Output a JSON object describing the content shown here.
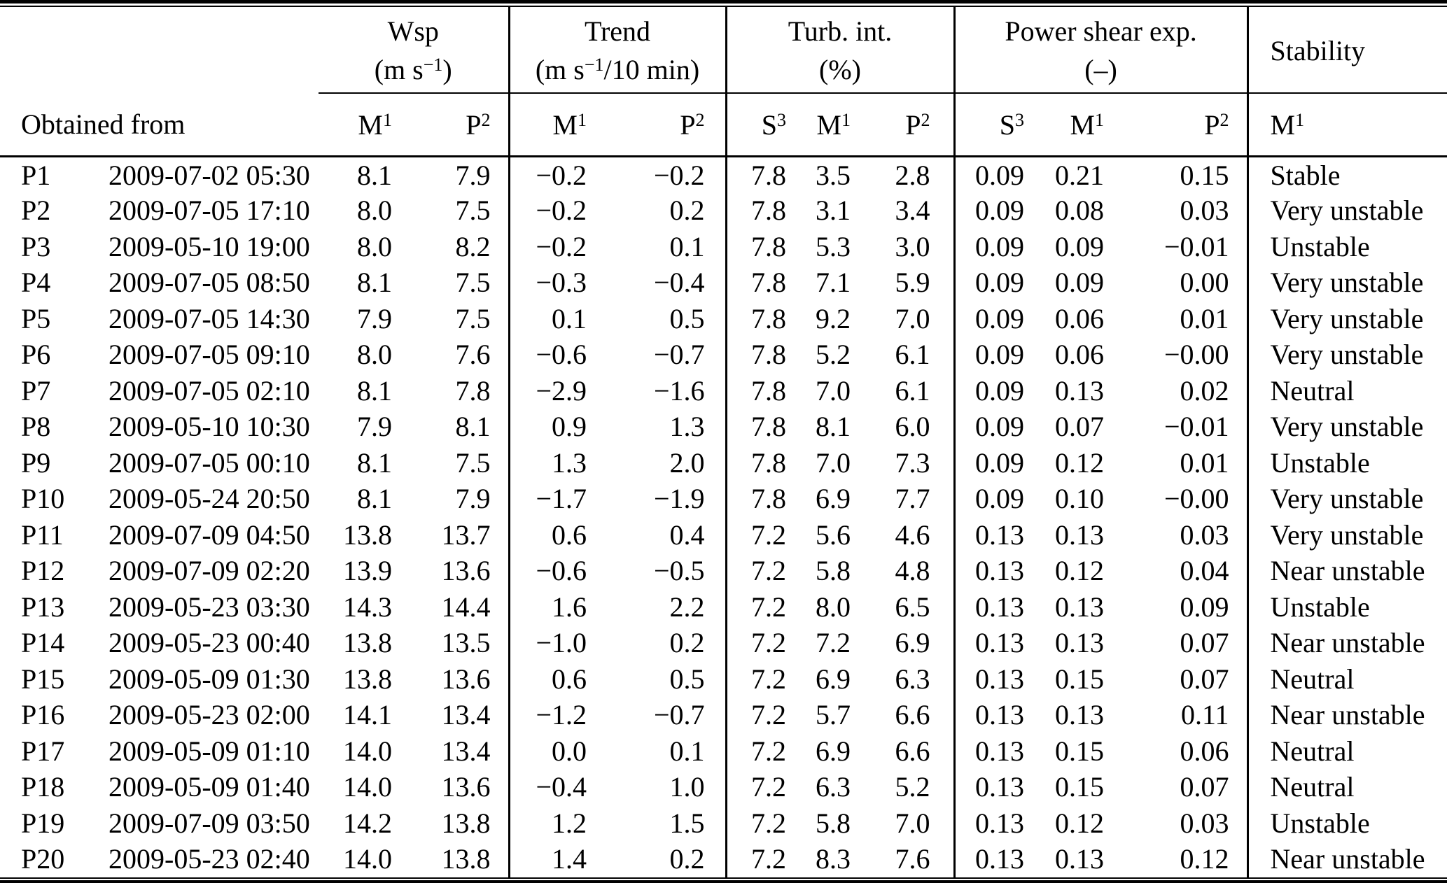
{
  "colors": {
    "text": "#000000",
    "background": "#ffffff",
    "rule": "#000000"
  },
  "table": {
    "obtained_from_label": "Obtained from",
    "groups": [
      {
        "name": "Wsp",
        "unit_pre": "(m s",
        "unit_sup": "−1",
        "unit_post": ")"
      },
      {
        "name": "Trend",
        "unit_pre": "(m s",
        "unit_sup": "−1",
        "unit_post": "/10 min)"
      },
      {
        "name": "Turb. int.",
        "unit_pre": "(%)",
        "unit_sup": "",
        "unit_post": ""
      },
      {
        "name": "Power shear exp.",
        "unit_pre": "(–)",
        "unit_sup": "",
        "unit_post": ""
      },
      {
        "name": "Stability",
        "unit_pre": "",
        "unit_sup": "",
        "unit_post": ""
      }
    ],
    "subheaders": [
      {
        "base": "M",
        "sup": "1"
      },
      {
        "base": "P",
        "sup": "2"
      },
      {
        "base": "M",
        "sup": "1"
      },
      {
        "base": "P",
        "sup": "2"
      },
      {
        "base": "S",
        "sup": "3"
      },
      {
        "base": "M",
        "sup": "1"
      },
      {
        "base": "P",
        "sup": "2"
      },
      {
        "base": "S",
        "sup": "3"
      },
      {
        "base": "M",
        "sup": "1"
      },
      {
        "base": "P",
        "sup": "2"
      },
      {
        "base": "M",
        "sup": "1"
      }
    ],
    "rows": [
      {
        "id": "P1",
        "datetime": "2009-07-02 05:30",
        "wsp_m": "8.1",
        "wsp_p": "7.9",
        "trend_m": "−0.2",
        "trend_p": "−0.2",
        "ti_s": "7.8",
        "ti_m": "3.5",
        "ti_p": "2.8",
        "shear_s": "0.09",
        "shear_m": "0.21",
        "shear_p": "0.15",
        "stability": "Stable"
      },
      {
        "id": "P2",
        "datetime": "2009-07-05 17:10",
        "wsp_m": "8.0",
        "wsp_p": "7.5",
        "trend_m": "−0.2",
        "trend_p": "0.2",
        "ti_s": "7.8",
        "ti_m": "3.1",
        "ti_p": "3.4",
        "shear_s": "0.09",
        "shear_m": "0.08",
        "shear_p": "0.03",
        "stability": "Very unstable"
      },
      {
        "id": "P3",
        "datetime": "2009-05-10 19:00",
        "wsp_m": "8.0",
        "wsp_p": "8.2",
        "trend_m": "−0.2",
        "trend_p": "0.1",
        "ti_s": "7.8",
        "ti_m": "5.3",
        "ti_p": "3.0",
        "shear_s": "0.09",
        "shear_m": "0.09",
        "shear_p": "−0.01",
        "stability": "Unstable"
      },
      {
        "id": "P4",
        "datetime": "2009-07-05 08:50",
        "wsp_m": "8.1",
        "wsp_p": "7.5",
        "trend_m": "−0.3",
        "trend_p": "−0.4",
        "ti_s": "7.8",
        "ti_m": "7.1",
        "ti_p": "5.9",
        "shear_s": "0.09",
        "shear_m": "0.09",
        "shear_p": "0.00",
        "stability": "Very unstable"
      },
      {
        "id": "P5",
        "datetime": "2009-07-05 14:30",
        "wsp_m": "7.9",
        "wsp_p": "7.5",
        "trend_m": "0.1",
        "trend_p": "0.5",
        "ti_s": "7.8",
        "ti_m": "9.2",
        "ti_p": "7.0",
        "shear_s": "0.09",
        "shear_m": "0.06",
        "shear_p": "0.01",
        "stability": "Very unstable"
      },
      {
        "id": "P6",
        "datetime": "2009-07-05 09:10",
        "wsp_m": "8.0",
        "wsp_p": "7.6",
        "trend_m": "−0.6",
        "trend_p": "−0.7",
        "ti_s": "7.8",
        "ti_m": "5.2",
        "ti_p": "6.1",
        "shear_s": "0.09",
        "shear_m": "0.06",
        "shear_p": "−0.00",
        "stability": "Very unstable"
      },
      {
        "id": "P7",
        "datetime": "2009-07-05 02:10",
        "wsp_m": "8.1",
        "wsp_p": "7.8",
        "trend_m": "−2.9",
        "trend_p": "−1.6",
        "ti_s": "7.8",
        "ti_m": "7.0",
        "ti_p": "6.1",
        "shear_s": "0.09",
        "shear_m": "0.13",
        "shear_p": "0.02",
        "stability": "Neutral"
      },
      {
        "id": "P8",
        "datetime": "2009-05-10 10:30",
        "wsp_m": "7.9",
        "wsp_p": "8.1",
        "trend_m": "0.9",
        "trend_p": "1.3",
        "ti_s": "7.8",
        "ti_m": "8.1",
        "ti_p": "6.0",
        "shear_s": "0.09",
        "shear_m": "0.07",
        "shear_p": "−0.01",
        "stability": "Very unstable"
      },
      {
        "id": "P9",
        "datetime": "2009-07-05 00:10",
        "wsp_m": "8.1",
        "wsp_p": "7.5",
        "trend_m": "1.3",
        "trend_p": "2.0",
        "ti_s": "7.8",
        "ti_m": "7.0",
        "ti_p": "7.3",
        "shear_s": "0.09",
        "shear_m": "0.12",
        "shear_p": "0.01",
        "stability": "Unstable"
      },
      {
        "id": "P10",
        "datetime": "2009-05-24 20:50",
        "wsp_m": "8.1",
        "wsp_p": "7.9",
        "trend_m": "−1.7",
        "trend_p": "−1.9",
        "ti_s": "7.8",
        "ti_m": "6.9",
        "ti_p": "7.7",
        "shear_s": "0.09",
        "shear_m": "0.10",
        "shear_p": "−0.00",
        "stability": "Very unstable"
      },
      {
        "id": "P11",
        "datetime": "2009-07-09 04:50",
        "wsp_m": "13.8",
        "wsp_p": "13.7",
        "trend_m": "0.6",
        "trend_p": "0.4",
        "ti_s": "7.2",
        "ti_m": "5.6",
        "ti_p": "4.6",
        "shear_s": "0.13",
        "shear_m": "0.13",
        "shear_p": "0.03",
        "stability": "Very unstable"
      },
      {
        "id": "P12",
        "datetime": "2009-07-09 02:20",
        "wsp_m": "13.9",
        "wsp_p": "13.6",
        "trend_m": "−0.6",
        "trend_p": "−0.5",
        "ti_s": "7.2",
        "ti_m": "5.8",
        "ti_p": "4.8",
        "shear_s": "0.13",
        "shear_m": "0.12",
        "shear_p": "0.04",
        "stability": "Near unstable"
      },
      {
        "id": "P13",
        "datetime": "2009-05-23 03:30",
        "wsp_m": "14.3",
        "wsp_p": "14.4",
        "trend_m": "1.6",
        "trend_p": "2.2",
        "ti_s": "7.2",
        "ti_m": "8.0",
        "ti_p": "6.5",
        "shear_s": "0.13",
        "shear_m": "0.13",
        "shear_p": "0.09",
        "stability": "Unstable"
      },
      {
        "id": "P14",
        "datetime": "2009-05-23 00:40",
        "wsp_m": "13.8",
        "wsp_p": "13.5",
        "trend_m": "−1.0",
        "trend_p": "0.2",
        "ti_s": "7.2",
        "ti_m": "7.2",
        "ti_p": "6.9",
        "shear_s": "0.13",
        "shear_m": "0.13",
        "shear_p": "0.07",
        "stability": "Near unstable"
      },
      {
        "id": "P15",
        "datetime": "2009-05-09 01:30",
        "wsp_m": "13.8",
        "wsp_p": "13.6",
        "trend_m": "0.6",
        "trend_p": "0.5",
        "ti_s": "7.2",
        "ti_m": "6.9",
        "ti_p": "6.3",
        "shear_s": "0.13",
        "shear_m": "0.15",
        "shear_p": "0.07",
        "stability": "Neutral"
      },
      {
        "id": "P16",
        "datetime": "2009-05-23 02:00",
        "wsp_m": "14.1",
        "wsp_p": "13.4",
        "trend_m": "−1.2",
        "trend_p": "−0.7",
        "ti_s": "7.2",
        "ti_m": "5.7",
        "ti_p": "6.6",
        "shear_s": "0.13",
        "shear_m": "0.13",
        "shear_p": "0.11",
        "stability": "Near unstable"
      },
      {
        "id": "P17",
        "datetime": "2009-05-09 01:10",
        "wsp_m": "14.0",
        "wsp_p": "13.4",
        "trend_m": "0.0",
        "trend_p": "0.1",
        "ti_s": "7.2",
        "ti_m": "6.9",
        "ti_p": "6.6",
        "shear_s": "0.13",
        "shear_m": "0.15",
        "shear_p": "0.06",
        "stability": "Neutral"
      },
      {
        "id": "P18",
        "datetime": "2009-05-09 01:40",
        "wsp_m": "14.0",
        "wsp_p": "13.6",
        "trend_m": "−0.4",
        "trend_p": "1.0",
        "ti_s": "7.2",
        "ti_m": "6.3",
        "ti_p": "5.2",
        "shear_s": "0.13",
        "shear_m": "0.15",
        "shear_p": "0.07",
        "stability": "Neutral"
      },
      {
        "id": "P19",
        "datetime": "2009-07-09 03:50",
        "wsp_m": "14.2",
        "wsp_p": "13.8",
        "trend_m": "1.2",
        "trend_p": "1.5",
        "ti_s": "7.2",
        "ti_m": "5.8",
        "ti_p": "7.0",
        "shear_s": "0.13",
        "shear_m": "0.12",
        "shear_p": "0.03",
        "stability": "Unstable"
      },
      {
        "id": "P20",
        "datetime": "2009-05-23 02:40",
        "wsp_m": "14.0",
        "wsp_p": "13.8",
        "trend_m": "1.4",
        "trend_p": "0.2",
        "ti_s": "7.2",
        "ti_m": "8.3",
        "ti_p": "7.6",
        "shear_s": "0.13",
        "shear_m": "0.13",
        "shear_p": "0.12",
        "stability": "Near unstable"
      }
    ]
  }
}
